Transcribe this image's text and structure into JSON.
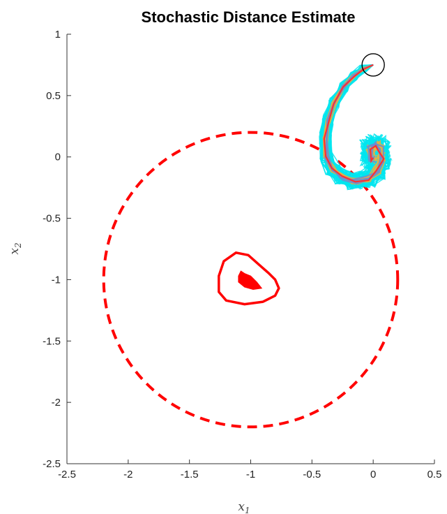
{
  "chart_data": {
    "type": "line",
    "title": "Stochastic Distance Estimate",
    "xlabel": "x",
    "xlabel_sub": "1",
    "ylabel": "x",
    "ylabel_sub": "2",
    "xlim": [
      -2.5,
      0.5
    ],
    "ylim": [
      -2.5,
      1
    ],
    "xticks": [
      "-2.5",
      "-2",
      "-1.5",
      "-1",
      "-0.5",
      "0",
      "0.5"
    ],
    "yticks": [
      "1",
      "0.5",
      "0",
      "-0.5",
      "-1",
      "-1.5",
      "-2",
      "-2.5"
    ],
    "grid": false,
    "colors": {
      "safe_circle": "#ff0000",
      "inner_set": "#ff0000",
      "trajectory_cloud": "#00e5ee",
      "trajectory_mid": "#e8b040",
      "trajectory_main": "#ff3030",
      "trajectory_alt": "#6a8fd0",
      "start_marker": "#000000"
    },
    "safe_circle": {
      "center": [
        -1.0,
        -1.0
      ],
      "radius": 1.2,
      "style": "dashed"
    },
    "inner_set_outline": [
      [
        -1.12,
        -0.78
      ],
      [
        -1.02,
        -0.8
      ],
      [
        -0.93,
        -0.88
      ],
      [
        -0.85,
        -0.95
      ],
      [
        -0.8,
        -1.0
      ],
      [
        -0.77,
        -1.07
      ],
      [
        -0.8,
        -1.13
      ],
      [
        -0.9,
        -1.18
      ],
      [
        -1.05,
        -1.2
      ],
      [
        -1.2,
        -1.17
      ],
      [
        -1.26,
        -1.1
      ],
      [
        -1.26,
        -0.97
      ],
      [
        -1.22,
        -0.85
      ]
    ],
    "inner_set_filled": [
      [
        -1.08,
        -0.93
      ],
      [
        -1.05,
        -0.95
      ],
      [
        -1.0,
        -0.97
      ],
      [
        -0.95,
        -1.02
      ],
      [
        -0.91,
        -1.07
      ],
      [
        -0.98,
        -1.08
      ],
      [
        -1.05,
        -1.06
      ],
      [
        -1.1,
        -1.02
      ],
      [
        -1.1,
        -0.97
      ]
    ],
    "start_point": [
      0.0,
      0.75
    ],
    "trajectory_mean": [
      [
        0.0,
        0.75
      ],
      [
        -0.08,
        0.72
      ],
      [
        -0.16,
        0.66
      ],
      [
        -0.24,
        0.57
      ],
      [
        -0.32,
        0.44
      ],
      [
        -0.37,
        0.3
      ],
      [
        -0.39,
        0.15
      ],
      [
        -0.38,
        0.0
      ],
      [
        -0.33,
        -0.1
      ],
      [
        -0.25,
        -0.17
      ],
      [
        -0.15,
        -0.2
      ],
      [
        -0.05,
        -0.18
      ],
      [
        0.03,
        -0.11
      ],
      [
        0.07,
        -0.02
      ],
      [
        0.06,
        0.06
      ],
      [
        0.02,
        0.1
      ],
      [
        -0.02,
        0.06
      ],
      [
        -0.01,
        -0.01
      ],
      [
        0.02,
        -0.02
      ]
    ]
  }
}
